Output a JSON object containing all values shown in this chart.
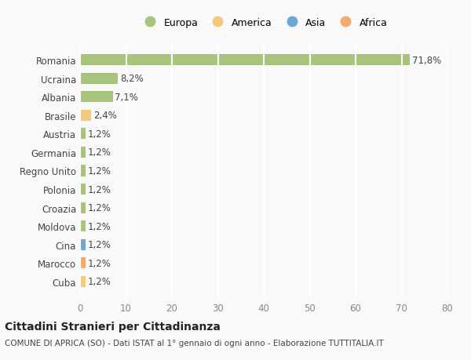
{
  "categories": [
    "Cuba",
    "Marocco",
    "Cina",
    "Moldova",
    "Croazia",
    "Polonia",
    "Regno Unito",
    "Germania",
    "Austria",
    "Brasile",
    "Albania",
    "Ucraina",
    "Romania"
  ],
  "values": [
    1.2,
    1.2,
    1.2,
    1.2,
    1.2,
    1.2,
    1.2,
    1.2,
    1.2,
    2.4,
    7.1,
    8.2,
    71.8
  ],
  "labels": [
    "1,2%",
    "1,2%",
    "1,2%",
    "1,2%",
    "1,2%",
    "1,2%",
    "1,2%",
    "1,2%",
    "1,2%",
    "2,4%",
    "7,1%",
    "8,2%",
    "71,8%"
  ],
  "colors": [
    "#f5c87a",
    "#f5a96a",
    "#6fa8d4",
    "#a8c47a",
    "#a8c47a",
    "#a8c47a",
    "#a8c47a",
    "#a8c47a",
    "#a8c47a",
    "#f5c87a",
    "#a8c47a",
    "#a8c47a",
    "#a8c47a"
  ],
  "legend": [
    {
      "label": "Europa",
      "color": "#a8c47a"
    },
    {
      "label": "America",
      "color": "#f5c87a"
    },
    {
      "label": "Asia",
      "color": "#6fa8d4"
    },
    {
      "label": "Africa",
      "color": "#f5a96a"
    }
  ],
  "title": "Cittadini Stranieri per Cittadinanza",
  "subtitle": "COMUNE DI APRICA (SO) - Dati ISTAT al 1° gennaio di ogni anno - Elaborazione TUTTITALIA.IT",
  "xlim": [
    0,
    80
  ],
  "xticks": [
    0,
    10,
    20,
    30,
    40,
    50,
    60,
    70,
    80
  ],
  "background_color": "#f9f9f9",
  "grid_color": "#ffffff",
  "bar_height": 0.6
}
